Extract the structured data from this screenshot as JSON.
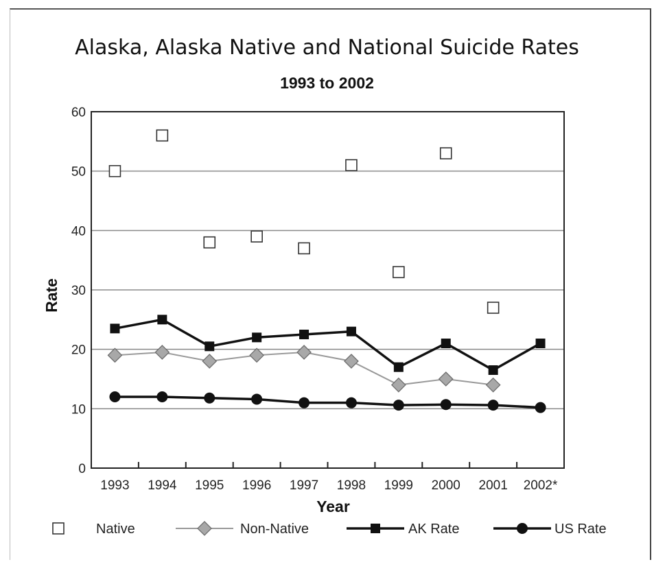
{
  "chart_data": {
    "type": "line",
    "title": "Alaska, Alaska Native and National Suicide Rates",
    "subtitle": "1993 to 2002",
    "xlabel": "Year",
    "ylabel": "Rate",
    "categories": [
      "1993",
      "1994",
      "1995",
      "1996",
      "1997",
      "1998",
      "1999",
      "2000",
      "2001",
      "2002*"
    ],
    "ylim": [
      0,
      60
    ],
    "yticks": [
      "0",
      "10",
      "20",
      "30",
      "40",
      "50",
      "60"
    ],
    "grid": true,
    "legend_position": "bottom",
    "series": [
      {
        "name": "Native",
        "marker": "open-square",
        "line": false,
        "color": "#333333",
        "values": [
          50,
          56,
          38,
          39,
          37,
          51,
          33,
          53,
          27,
          null
        ]
      },
      {
        "name": "Non-Native",
        "marker": "diamond",
        "line": true,
        "color": "#999999",
        "values": [
          19,
          19.5,
          18,
          19,
          19.5,
          18,
          14,
          15,
          14,
          null
        ]
      },
      {
        "name": "AK Rate",
        "marker": "square",
        "line": true,
        "color": "#111111",
        "values": [
          23.5,
          25,
          20.5,
          22,
          22.5,
          23,
          17,
          21,
          16.5,
          21
        ]
      },
      {
        "name": "US Rate",
        "marker": "circle",
        "line": true,
        "color": "#111111",
        "values": [
          12,
          12,
          11.8,
          11.6,
          11,
          11,
          10.6,
          10.7,
          10.6,
          10.2
        ]
      }
    ]
  }
}
